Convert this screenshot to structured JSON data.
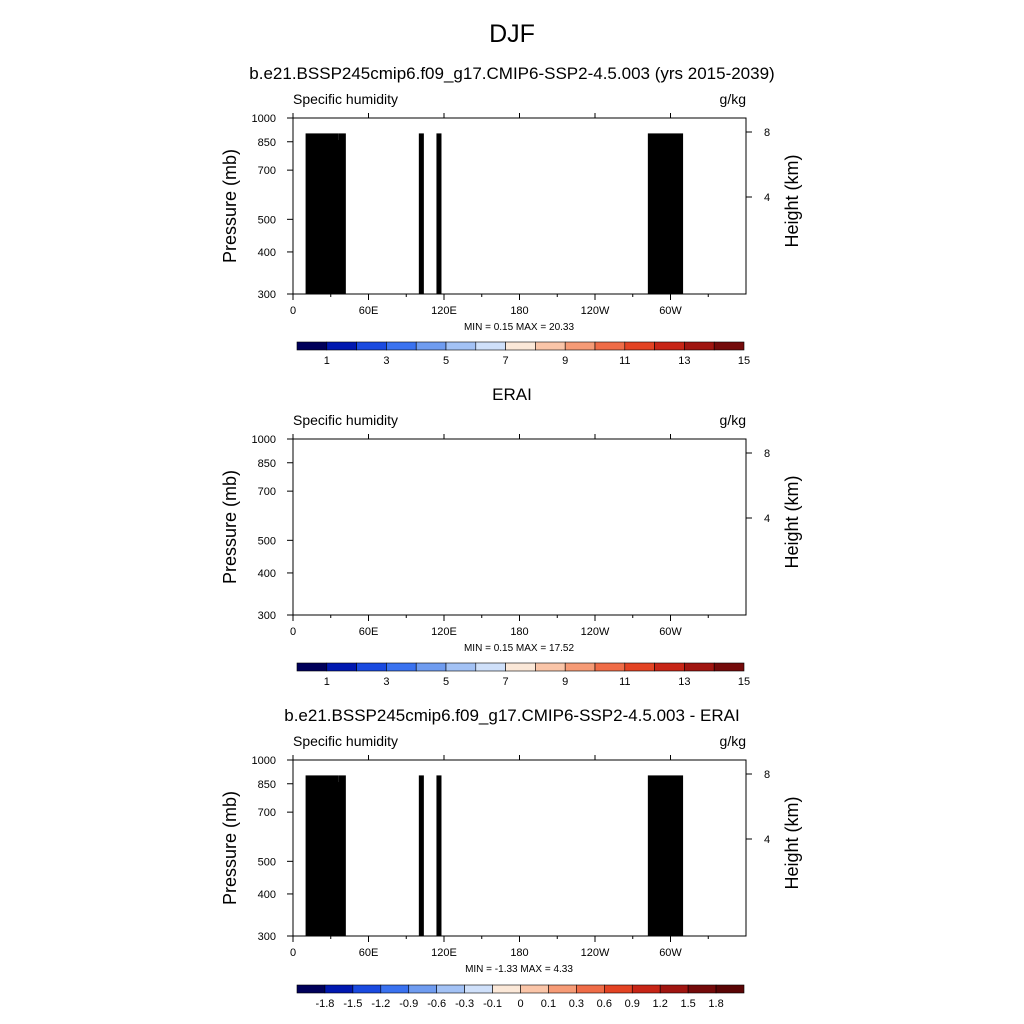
{
  "suptitle": "DJF",
  "panels": [
    {
      "title": "b.e21.BSSP245cmip6.f09_g17.CMIP6-SSP2-4.5.003 (yrs 2015-2039)",
      "minmax": "MIN =   0.15  MAX =  20.33"
    },
    {
      "title": "ERAI",
      "minmax": "MIN =   0.15  MAX =  17.52"
    },
    {
      "title": "b.e21.BSSP245cmip6.f09_g17.CMIP6-SSP2-4.5.003 - ERAI",
      "minmax": "MIN =  -1.33  MAX =   4.33"
    }
  ],
  "chart_data": [
    {
      "type": "heatmap",
      "title": "b.e21.BSSP245cmip6.f09_g17.CMIP6-SSP2-4.5.003 (yrs 2015-2039)",
      "left_label": "Specific humidity",
      "right_label": "g/kg",
      "ylabel": "Pressure (mb)",
      "y2label": "Height (km)",
      "xticks": [
        "0",
        "60E",
        "120E",
        "180",
        "120W",
        "60W"
      ],
      "yticks": [
        "300",
        "400",
        "500",
        "700",
        "850",
        "1000"
      ],
      "y2ticks": [
        "8",
        "4"
      ],
      "xlim": [
        0,
        360
      ],
      "ylim": [
        1000,
        300
      ],
      "colorbar": {
        "labels": [
          "1",
          "3",
          "5",
          "7",
          "9",
          "11",
          "13",
          "15"
        ],
        "colors": [
          "#00005a",
          "#0018b0",
          "#1a4ae0",
          "#3a72f0",
          "#6f9cf0",
          "#a3c2f5",
          "#cfe0fa",
          "#fbe8d8",
          "#fac5a8",
          "#f69b76",
          "#ef6c47",
          "#e34323",
          "#c72516",
          "#a01510",
          "#740a0a"
        ]
      },
      "min": 0.15,
      "max": 20.33
    },
    {
      "type": "heatmap",
      "title": "ERAI",
      "left_label": "Specific humidity",
      "right_label": "g/kg",
      "ylabel": "Pressure (mb)",
      "y2label": "Height (km)",
      "xticks": [
        "0",
        "60E",
        "120E",
        "180",
        "120W",
        "60W"
      ],
      "yticks": [
        "300",
        "400",
        "500",
        "700",
        "850",
        "1000"
      ],
      "y2ticks": [
        "8",
        "4"
      ],
      "xlim": [
        0,
        360
      ],
      "ylim": [
        1000,
        300
      ],
      "colorbar": {
        "labels": [
          "1",
          "3",
          "5",
          "7",
          "9",
          "11",
          "13",
          "15"
        ],
        "colors": [
          "#00005a",
          "#0018b0",
          "#1a4ae0",
          "#3a72f0",
          "#6f9cf0",
          "#a3c2f5",
          "#cfe0fa",
          "#fbe8d8",
          "#fac5a8",
          "#f69b76",
          "#ef6c47",
          "#e34323",
          "#c72516",
          "#a01510",
          "#740a0a"
        ]
      },
      "min": 0.15,
      "max": 17.52
    },
    {
      "type": "heatmap",
      "title": "b.e21.BSSP245cmip6.f09_g17.CMIP6-SSP2-4.5.003 - ERAI",
      "left_label": "Specific humidity",
      "right_label": "g/kg",
      "ylabel": "Pressure (mb)",
      "y2label": "Height (km)",
      "xticks": [
        "0",
        "60E",
        "120E",
        "180",
        "120W",
        "60W"
      ],
      "yticks": [
        "300",
        "400",
        "500",
        "700",
        "850",
        "1000"
      ],
      "y2ticks": [
        "8",
        "4"
      ],
      "xlim": [
        0,
        360
      ],
      "ylim": [
        1000,
        300
      ],
      "colorbar": {
        "labels": [
          "-1.8",
          "-1.5",
          "-1.2",
          "-0.9",
          "-0.6",
          "-0.3",
          "-0.1",
          "0",
          "0.1",
          "0.3",
          "0.6",
          "0.9",
          "1.2",
          "1.5",
          "1.8"
        ],
        "colors": [
          "#00005a",
          "#0018b0",
          "#1a4ae0",
          "#3a72f0",
          "#6f9cf0",
          "#a3c2f5",
          "#cfe0fa",
          "#fbe8d8",
          "#fac5a8",
          "#f69b76",
          "#ef6c47",
          "#e34323",
          "#c72516",
          "#a01510",
          "#740a0a",
          "#5a0505"
        ]
      },
      "min": -1.33,
      "max": 4.33
    }
  ]
}
